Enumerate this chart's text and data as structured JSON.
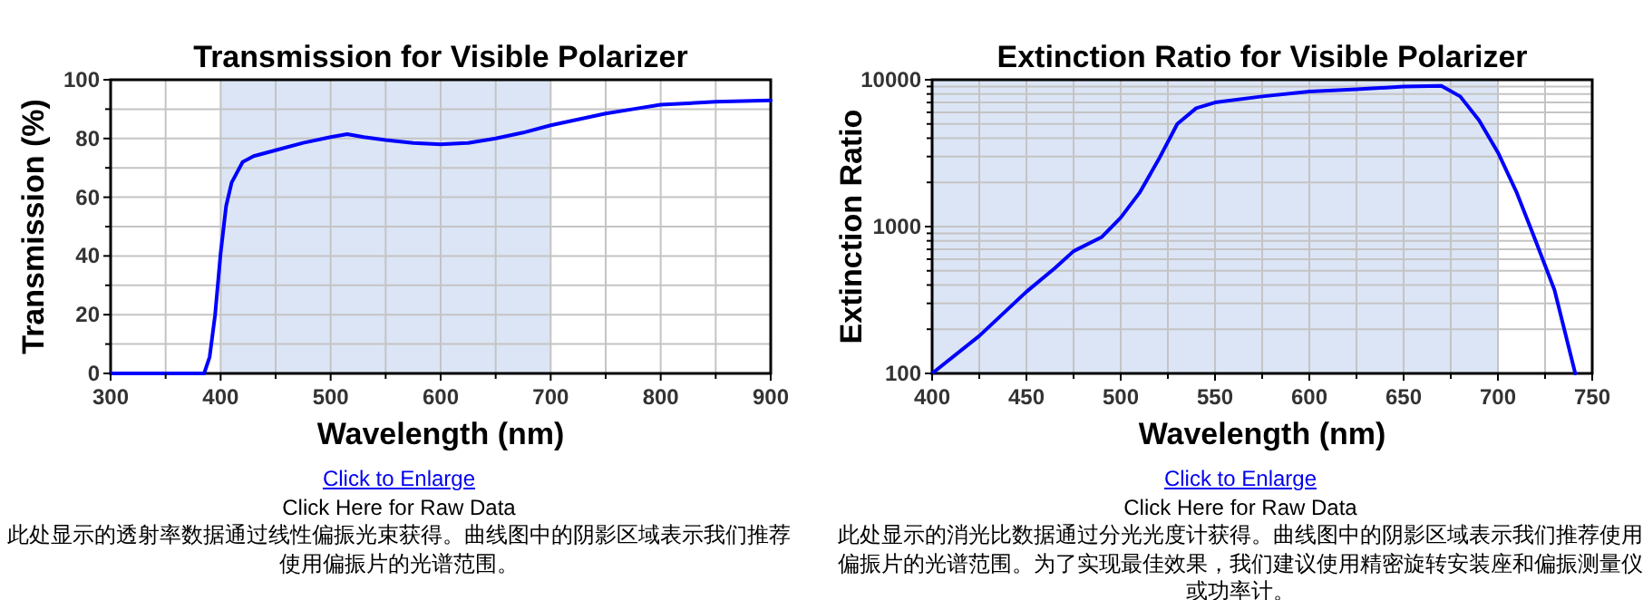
{
  "chart_data": [
    {
      "type": "line",
      "title": "Transmission for Visible Polarizer",
      "xlabel": "Wavelength (nm)",
      "ylabel": "Transmission (%)",
      "xlim": [
        300,
        900
      ],
      "xticks": [
        300,
        400,
        500,
        600,
        700,
        800,
        900
      ],
      "ylim": [
        0,
        100
      ],
      "yticks": [
        0,
        20,
        40,
        60,
        80,
        100
      ],
      "grid": true,
      "bands": [
        {
          "axis": "x",
          "from": 400,
          "to": 700,
          "color": "#dce5f5"
        }
      ],
      "series": [
        {
          "color": "#0000ff",
          "x": [
            300,
            385,
            390,
            395,
            400,
            405,
            410,
            420,
            430,
            450,
            475,
            500,
            515,
            530,
            550,
            575,
            600,
            625,
            650,
            675,
            700,
            725,
            750,
            775,
            800,
            850,
            900
          ],
          "values": [
            0,
            0,
            5.6,
            20,
            41,
            57,
            65,
            72,
            74,
            76,
            78.5,
            80.5,
            81.5,
            80.5,
            79.5,
            78.5,
            78,
            78.5,
            80,
            82,
            84.5,
            86.5,
            88.5,
            90,
            91.5,
            92.5,
            93
          ]
        }
      ],
      "annotations": [
        "Click to Enlarge",
        "Click Here for Raw Data",
        "此处显示的透射率数据通过线性偏振光束获得。曲线图中的阴影区域表示我们推荐使用偏振片的光谱范围。"
      ]
    },
    {
      "type": "line",
      "title": "Extinction Ratio for Visible Polarizer",
      "xlabel": "Wavelength (nm)",
      "ylabel": "Extinction Ratio",
      "log": "y",
      "xlim": [
        400,
        750
      ],
      "xticks": [
        400,
        450,
        500,
        550,
        600,
        650,
        700,
        750
      ],
      "ylim": [
        100,
        10000
      ],
      "yticks": [
        100,
        1000,
        10000
      ],
      "grid": true,
      "bands": [
        {
          "axis": "x",
          "from": 400,
          "to": 700,
          "color": "#dce5f5"
        }
      ],
      "series": [
        {
          "color": "#0000ff",
          "x": [
            400,
            425,
            450,
            465,
            475,
            490,
            500,
            510,
            520,
            530,
            540,
            550,
            575,
            600,
            625,
            650,
            670,
            680,
            690,
            700,
            710,
            720,
            730,
            741
          ],
          "values": [
            100,
            180,
            360,
            520,
            680,
            850,
            1150,
            1700,
            2850,
            5000,
            6400,
            7000,
            7700,
            8300,
            8600,
            9000,
            9100,
            7700,
            5300,
            3200,
            1700,
            800,
            370,
            100
          ]
        }
      ],
      "annotations": [
        "Click to Enlarge",
        "Click Here for Raw Data",
        "此处显示的消光比数据通过分光光度计获得。曲线图中的阴影区域表示我们推荐使用偏振片的光谱范围。为了实现最佳效果，我们建议使用精密旋转安装座和偏振测量仪或功率计。"
      ]
    }
  ]
}
